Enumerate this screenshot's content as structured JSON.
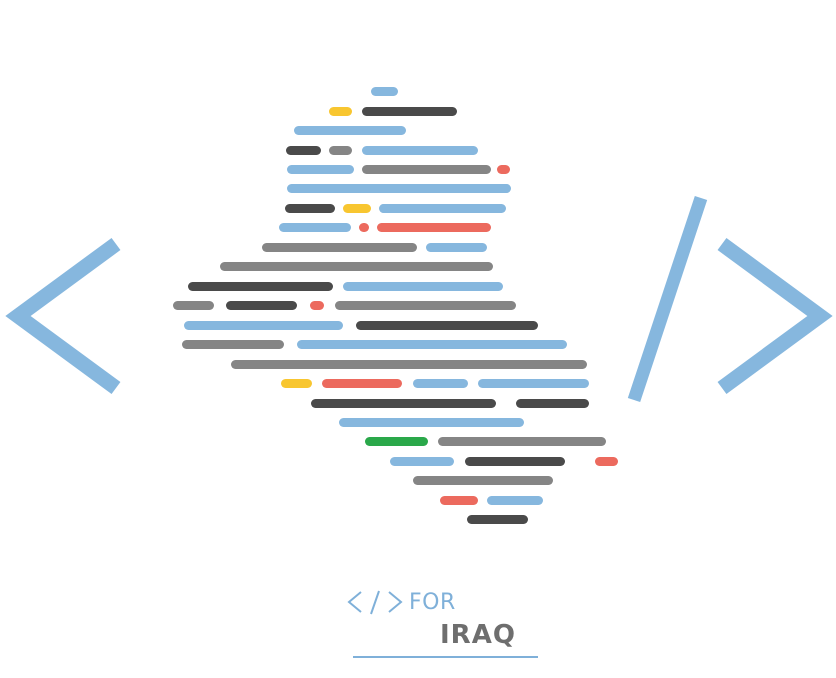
{
  "brand": {
    "word_for": "FOR",
    "word_country": "IRAQ",
    "icon_symbol": "</>"
  },
  "colors": {
    "blue": "#86b7de",
    "dark": "#4a4a4a",
    "gray": "#858585",
    "yellow": "#f8c630",
    "red": "#ec6a5e",
    "green": "#2aa84a"
  },
  "icons": [
    "less-than-bracket-icon",
    "slash-icon",
    "greater-than-bracket-icon",
    "iraq-map-icon"
  ]
}
